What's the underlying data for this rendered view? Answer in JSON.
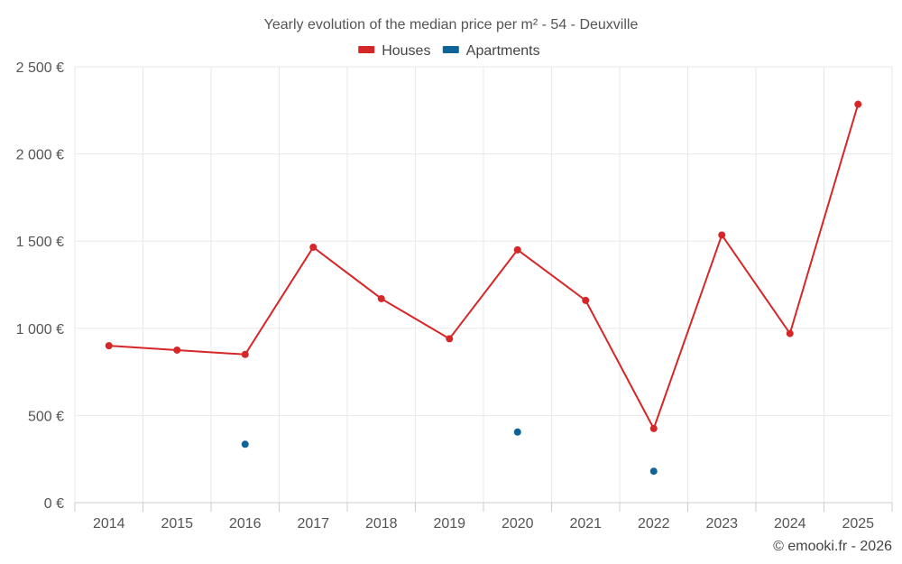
{
  "chart_data": {
    "type": "line",
    "title": "Yearly evolution of the median price per m² - 54 - Deuxville",
    "categories": [
      "2014",
      "2015",
      "2016",
      "2017",
      "2018",
      "2019",
      "2020",
      "2021",
      "2022",
      "2023",
      "2024",
      "2025"
    ],
    "series": [
      {
        "name": "Houses",
        "color": "#d62728",
        "style": "line-with-markers",
        "values": [
          900,
          875,
          850,
          1465,
          1170,
          940,
          1450,
          1160,
          425,
          1535,
          970,
          2285
        ]
      },
      {
        "name": "Apartments",
        "color": "#0f6497",
        "style": "markers-only",
        "values": [
          null,
          null,
          335,
          null,
          null,
          null,
          405,
          null,
          180,
          null,
          null,
          null
        ]
      }
    ],
    "xlabel": "",
    "ylabel": "",
    "ylim": [
      0,
      2500
    ],
    "yticks": [
      0,
      500,
      1000,
      1500,
      2000,
      2500
    ],
    "ytick_labels": [
      "0 €",
      "500 €",
      "1 000 €",
      "1 500 €",
      "2 000 €",
      "2 500 €"
    ],
    "grid": true,
    "legend_position": "top-center"
  },
  "credit": "© emooki.fr - 2026"
}
